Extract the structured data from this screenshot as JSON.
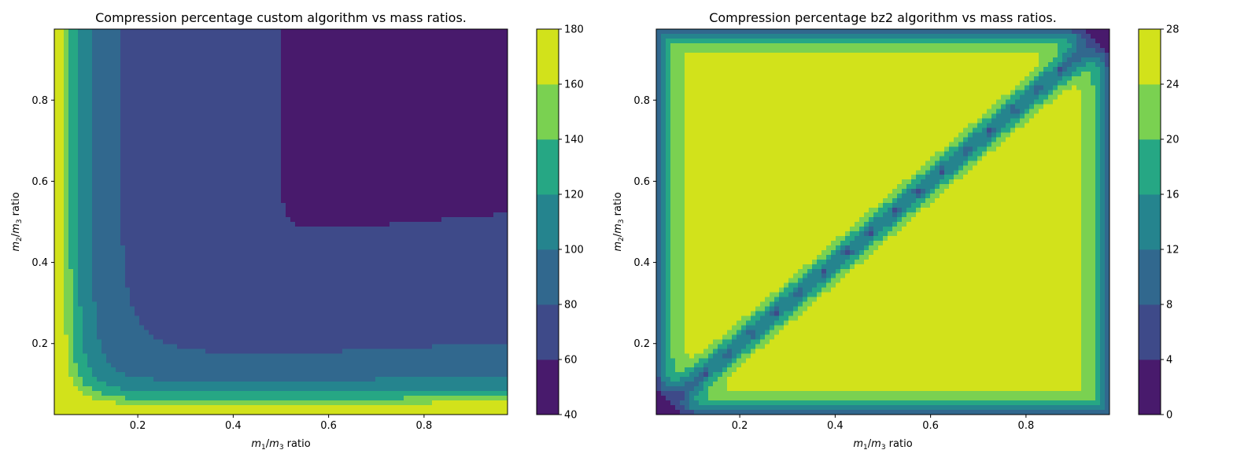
{
  "chart_data": [
    {
      "type": "contourf",
      "title": "Compression percentage custom algorithm vs mass ratios.",
      "xlabel": {
        "m_num": "m",
        "sub_num": "1",
        "m_den": "m",
        "sub_den": "3",
        "suffix": " ratio"
      },
      "ylabel": {
        "m_num": "m",
        "sub_num": "2",
        "m_den": "m",
        "sub_den": "3",
        "suffix": " ratio"
      },
      "xlim": [
        0.025,
        0.975
      ],
      "ylim": [
        0.025,
        0.975
      ],
      "xticks": [
        0.2,
        0.4,
        0.6,
        0.8
      ],
      "yticks": [
        0.2,
        0.4,
        0.6,
        0.8
      ],
      "tick_labels": [
        "0.2",
        "0.4",
        "0.6",
        "0.8"
      ],
      "colorbar": {
        "levels": [
          40,
          60,
          80,
          100,
          120,
          140,
          160,
          180
        ],
        "labels": [
          "40",
          "60",
          "80",
          "100",
          "120",
          "140",
          "160",
          "180"
        ],
        "colors": [
          "#481a6c",
          "#3e4a89",
          "#31688e",
          "#25848e",
          "#26a784",
          "#7ad151",
          "#d2e21b"
        ]
      },
      "regions_note": "Minimum (40-60) in upper-right region x>0.45, y>0.45; 60-80 dominates center; values rise to 160-180 near the left edge (x~0.03) and bottom edge (y~0.03)."
    },
    {
      "type": "contourf",
      "title": "Compression percentage bz2 algorithm vs mass ratios.",
      "xlabel": {
        "m_num": "m",
        "sub_num": "1",
        "m_den": "m",
        "sub_den": "3",
        "suffix": " ratio"
      },
      "ylabel": {
        "m_num": "m",
        "sub_num": "2",
        "m_den": "m",
        "sub_den": "3",
        "suffix": " ratio"
      },
      "xlim": [
        0.025,
        0.975
      ],
      "ylim": [
        0.025,
        0.975
      ],
      "xticks": [
        0.2,
        0.4,
        0.6,
        0.8
      ],
      "yticks": [
        0.2,
        0.4,
        0.6,
        0.8
      ],
      "tick_labels": [
        "0.2",
        "0.4",
        "0.6",
        "0.8"
      ],
      "colorbar": {
        "levels": [
          0,
          4,
          8,
          12,
          16,
          20,
          24,
          28
        ],
        "labels": [
          "0",
          "4",
          "8",
          "12",
          "16",
          "20",
          "24",
          "28"
        ],
        "colors": [
          "#481a6c",
          "#3e4a89",
          "#31688e",
          "#25848e",
          "#26a784",
          "#7ad151",
          "#d2e21b"
        ]
      },
      "regions_note": "Interior is 24-28; values drop toward the domain edges and along the diagonal y=x where a band of 8-16 with 0-8 minima at x=0.075..0.875 in steps of 0.05."
    }
  ]
}
